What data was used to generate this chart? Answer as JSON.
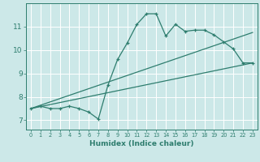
{
  "xlabel": "Humidex (Indice chaleur)",
  "bg_color": "#cce8e8",
  "line_color": "#2e7d6e",
  "grid_color": "#ffffff",
  "xlim": [
    -0.5,
    23.5
  ],
  "ylim": [
    6.6,
    12.0
  ],
  "xticks": [
    0,
    1,
    2,
    3,
    4,
    5,
    6,
    7,
    8,
    9,
    10,
    11,
    12,
    13,
    14,
    15,
    16,
    17,
    18,
    19,
    20,
    21,
    22,
    23
  ],
  "yticks": [
    7,
    8,
    9,
    10,
    11
  ],
  "curve_x": [
    0,
    1,
    2,
    3,
    4,
    5,
    6,
    7,
    8,
    9,
    10,
    11,
    12,
    13,
    14,
    15,
    16,
    17,
    18,
    19,
    20,
    21,
    22,
    23
  ],
  "curve_y": [
    7.5,
    7.6,
    7.5,
    7.5,
    7.6,
    7.5,
    7.35,
    7.05,
    8.5,
    9.6,
    10.3,
    11.1,
    11.55,
    11.55,
    10.6,
    11.1,
    10.8,
    10.85,
    10.85,
    10.65,
    10.35,
    10.05,
    9.45,
    9.45
  ],
  "line1_x": [
    0,
    23
  ],
  "line1_y": [
    7.5,
    9.45
  ],
  "line2_x": [
    0,
    23
  ],
  "line2_y": [
    7.5,
    10.75
  ]
}
